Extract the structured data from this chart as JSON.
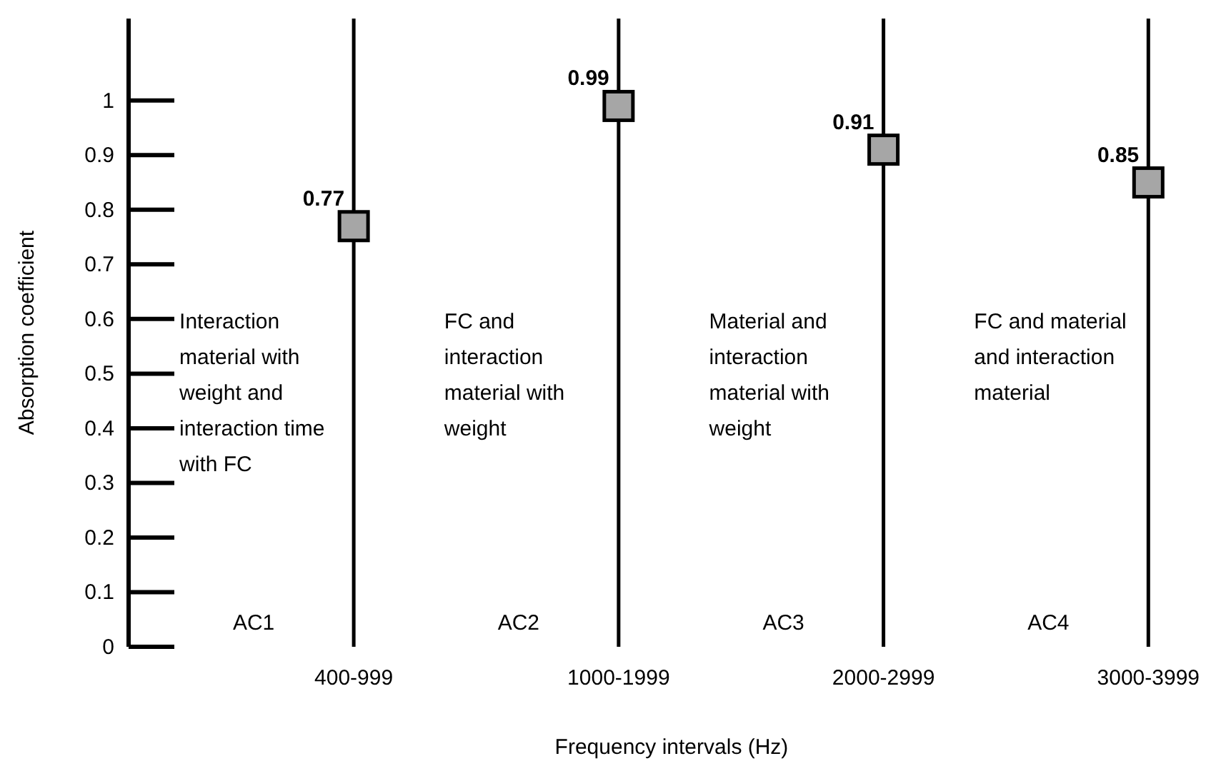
{
  "chart_data": {
    "type": "scatter",
    "xlabel": "Frequency intervals (Hz)",
    "ylabel": "Absorption coefficient",
    "categories": [
      "400-999",
      "1000-1999",
      "2000-2999",
      "3000-3999"
    ],
    "values": [
      0.77,
      0.99,
      0.91,
      0.85
    ],
    "color": "#a6a6a6",
    "marker": "square",
    "data_labels": true,
    "ylim": [
      0,
      1.15
    ],
    "yticks": [
      0,
      0.1,
      0.2,
      0.3,
      0.4,
      0.5,
      0.6,
      0.7,
      0.8,
      0.9,
      1
    ],
    "ref_lines": [
      {
        "axis": "x",
        "value": "400-999",
        "color": "#000000"
      },
      {
        "axis": "x",
        "value": "1000-1999",
        "color": "#000000"
      },
      {
        "axis": "x",
        "value": "2000-2999",
        "color": "#000000"
      },
      {
        "axis": "x",
        "value": "3000-3999",
        "color": "#000000"
      }
    ],
    "annotations": [
      "Interaction material with weight and interaction time with FC",
      "FC and interaction material with weight",
      "Material and interaction material with weight",
      "FC and material and interaction material",
      "AC1",
      "AC2",
      "AC3",
      "AC4"
    ]
  }
}
